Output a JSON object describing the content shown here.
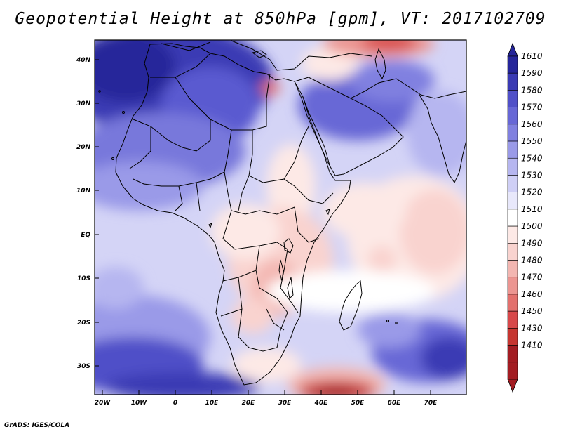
{
  "title": "Geopotential Height at 850hPa [gpm], VT: 2017102709",
  "credit": "GrADS: IGES/COLA",
  "map": {
    "lon_labels": [
      "20W",
      "10W",
      "0",
      "10E",
      "20E",
      "30E",
      "40E",
      "50E",
      "60E",
      "70E"
    ],
    "lat_labels": [
      "40N",
      "30N",
      "20N",
      "10N",
      "EQ",
      "10S",
      "20S",
      "30S"
    ],
    "region": "Africa, Middle East and western Indian Ocean"
  },
  "colorbar": {
    "levels": [
      "1410",
      "1430",
      "1450",
      "1460",
      "1470",
      "1480",
      "1490",
      "1500",
      "1510",
      "1520",
      "1530",
      "1540",
      "1550",
      "1560",
      "1570",
      "1580",
      "1590",
      "1610"
    ],
    "colors": [
      "#a31c22",
      "#c63530",
      "#d8484a",
      "#e3706d",
      "#ec9591",
      "#f3b6b1",
      "#f9d3cf",
      "#fde9e6",
      "#ffffff",
      "#e8e8fb",
      "#cfcff6",
      "#b6b6f0",
      "#9a9ae8",
      "#8080e0",
      "#6767d6",
      "#5050c8",
      "#3a3ab4",
      "#25259a"
    ],
    "low_cap_color": "#a31c22",
    "high_cap_color": "#25259a"
  }
}
